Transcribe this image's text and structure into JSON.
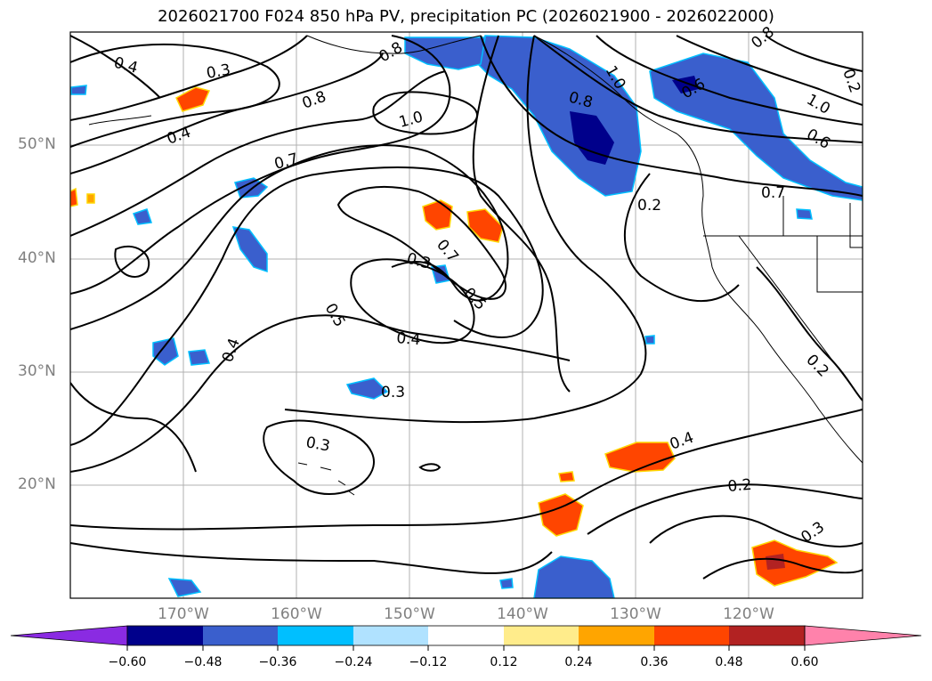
{
  "title": "2026021700 F024 850 hPa PV, precipitation PC (2026021900 - 2026022000)",
  "lat_labels": [
    "50°N",
    "40°N",
    "30°N",
    "20°N"
  ],
  "lon_labels": [
    "170°W",
    "160°W",
    "150°W",
    "140°W",
    "130°W",
    "120°W"
  ],
  "colorbar": {
    "ticks": [
      "−0.60",
      "−0.48",
      "−0.36",
      "−0.24",
      "−0.12",
      "0.12",
      "0.24",
      "0.36",
      "0.48",
      "0.60"
    ],
    "colors": [
      "#8a2be2",
      "#00008b",
      "#3a5fcd",
      "#00bfff",
      "#b0e2ff",
      "#ffffff",
      "#ffec8b",
      "#ffa500",
      "#ff4500",
      "#b22222",
      "#ff82ab"
    ]
  },
  "contour_labels": [
    "0.4",
    "0.3",
    "0.8",
    "0.4",
    "1.0",
    "0.7",
    "0.8",
    "0.7",
    "0.3",
    "0.5",
    "0.5",
    "0.4",
    "0.4",
    "0.3",
    "0.3",
    "0.2",
    "0.6",
    "1.0",
    "0.8",
    "1.0",
    "0.6",
    "0.7",
    "0.2",
    "0.4",
    "0.2",
    "0.3",
    "0.2",
    "0.8"
  ]
}
